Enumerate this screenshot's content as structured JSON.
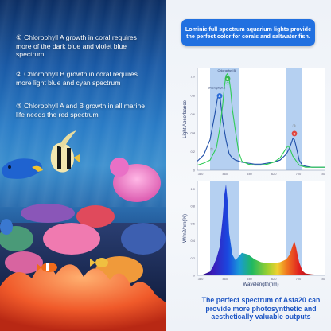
{
  "left_panel": {
    "captions": [
      "① Chlorophyll A growth in coral requires more of the dark blue and violet blue spectrum",
      "② Chlorophyll B growth in coral requires more light blue and cyan spectrum",
      "③ Chlorophyll A and B growth in all marine life needs the red spectrum"
    ]
  },
  "right_panel": {
    "banner": "Lominie full spectrum aquarium lights provide the perfect color for corals and saltwater fish.",
    "bottom_text": "The perfect spectrum of Asta20 can provide more photosynthetic and aesthetically valuable outputs"
  },
  "colors": {
    "chl_a": "#1f4fa8",
    "chl_b": "#2fcc55",
    "band": "#a8c8ee",
    "banner": "#2170e0",
    "marker_a": "#2d6ed8",
    "marker_b": "#38b850",
    "marker_c": "#e0453e",
    "bottom_text": "#1e56c4"
  },
  "chart_data": [
    {
      "type": "line",
      "ylabel": "Light Absorbance",
      "xlim": [
        360,
        760
      ],
      "ylim": [
        0,
        1.0
      ],
      "x_ticks": [
        "380",
        "460",
        "540",
        "620",
        "700",
        "780"
      ],
      "y_ticks": [
        "0",
        "0.2",
        "0.4",
        "0.6",
        "0.8",
        "1.0"
      ],
      "highlight_bands": [
        [
          400,
          490
        ],
        [
          640,
          690
        ]
      ],
      "series": [
        {
          "name": "Chlorophyll A",
          "x": [
            360,
            380,
            400,
            415,
            425,
            432,
            440,
            450,
            460,
            470,
            480,
            500,
            520,
            540,
            560,
            580,
            600,
            620,
            640,
            650,
            660,
            665,
            670,
            680,
            690,
            700,
            720,
            740,
            760
          ],
          "y": [
            0.09,
            0.15,
            0.3,
            0.55,
            0.74,
            0.7,
            0.48,
            0.3,
            0.16,
            0.12,
            0.1,
            0.08,
            0.07,
            0.06,
            0.06,
            0.07,
            0.08,
            0.1,
            0.16,
            0.22,
            0.31,
            0.3,
            0.24,
            0.1,
            0.05,
            0.04,
            0.03,
            0.03,
            0.03
          ]
        },
        {
          "name": "Chlorophyll B",
          "x": [
            360,
            380,
            400,
            420,
            430,
            440,
            445,
            450,
            455,
            460,
            465,
            470,
            480,
            490,
            500,
            520,
            540,
            560,
            580,
            600,
            620,
            630,
            640,
            645,
            650,
            660,
            680,
            700,
            720,
            740,
            760
          ],
          "y": [
            0.05,
            0.07,
            0.1,
            0.22,
            0.4,
            0.65,
            0.82,
            0.93,
            0.95,
            0.9,
            0.78,
            0.6,
            0.38,
            0.18,
            0.09,
            0.06,
            0.05,
            0.05,
            0.06,
            0.08,
            0.12,
            0.17,
            0.22,
            0.24,
            0.22,
            0.14,
            0.05,
            0.03,
            0.03,
            0.03,
            0.03
          ]
        }
      ],
      "annotations": [
        {
          "label": "Chlorophyll B",
          "marker": "B",
          "number": "②"
        },
        {
          "label": "Chlorophyll A",
          "marker": "A",
          "number": ""
        },
        {
          "label": "",
          "marker": "C",
          "number": "③"
        },
        {
          "label": "",
          "marker": "",
          "number": "①"
        }
      ]
    },
    {
      "type": "area",
      "xlabel": "Wavelength(nm)",
      "ylabel": "W/m2/nm(%)",
      "xlim": [
        360,
        760
      ],
      "ylim": [
        0,
        1.0
      ],
      "x_ticks": [
        "380",
        "460",
        "540",
        "620",
        "700",
        "780"
      ],
      "y_ticks": [
        "0",
        "0.2",
        "0.4",
        "0.6",
        "0.8",
        "1.0"
      ],
      "highlight_bands": [
        [
          400,
          490
        ],
        [
          640,
          690
        ]
      ],
      "series": [
        {
          "name": "",
          "x": [
            360,
            380,
            400,
            410,
            420,
            430,
            440,
            445,
            450,
            455,
            460,
            470,
            480,
            490,
            500,
            520,
            540,
            560,
            580,
            600,
            620,
            640,
            650,
            660,
            665,
            670,
            680,
            690,
            700,
            720,
            760
          ],
          "y": [
            0.0,
            0.01,
            0.04,
            0.1,
            0.18,
            0.3,
            0.62,
            0.86,
            0.97,
            0.8,
            0.45,
            0.22,
            0.16,
            0.2,
            0.24,
            0.22,
            0.17,
            0.14,
            0.13,
            0.13,
            0.14,
            0.17,
            0.22,
            0.32,
            0.36,
            0.3,
            0.14,
            0.05,
            0.02,
            0.01,
            0.0
          ]
        }
      ]
    }
  ]
}
